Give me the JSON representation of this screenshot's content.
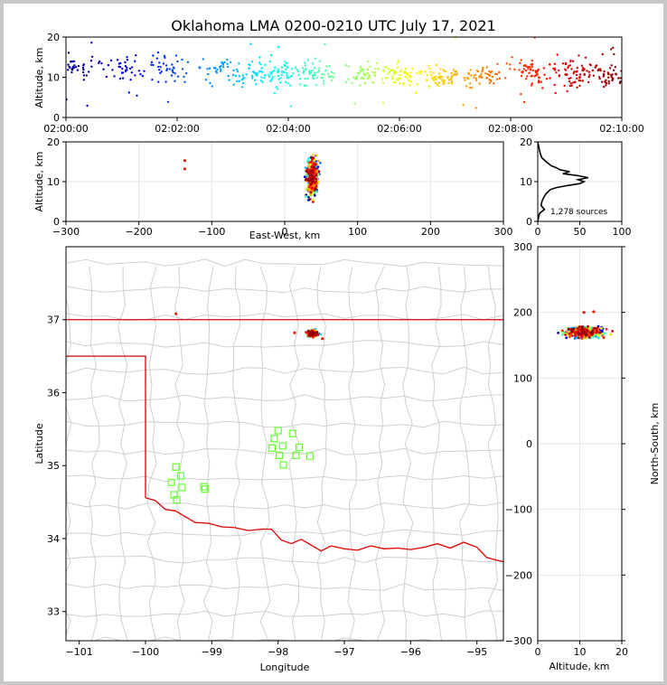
{
  "title": "Oklahoma LMA 0200-0210 UTC July 17, 2021",
  "colors": {
    "boundary": "#cfcfcf",
    "state_line": "#e00000",
    "station": "#66ff33",
    "hist": "#000000",
    "grid": "#e6e6e6"
  },
  "chart_data": [
    {
      "id": "time_height",
      "type": "scatter",
      "ylabel": "Altitude, km",
      "xlim": [
        "02:00:00",
        "02:10:00"
      ],
      "ylim": [
        0,
        20
      ],
      "xticks": [
        "02:00:00",
        "02:02:00",
        "02:04:00",
        "02:06:00",
        "02:08:00",
        "02:10:00"
      ],
      "yticks": [
        "0",
        "10",
        "20"
      ],
      "color_by": "time (jet colormap)",
      "bursts": [
        {
          "time": "02:00:10",
          "n": 44,
          "alt_center": 13,
          "alt_spread": 2.5
        },
        {
          "time": "02:01:05",
          "n": 40,
          "alt_center": 12,
          "alt_spread": 2.5
        },
        {
          "time": "02:01:50",
          "n": 38,
          "alt_center": 12.5,
          "alt_spread": 3
        },
        {
          "time": "02:02:45",
          "n": 32,
          "alt_center": 12,
          "alt_spread": 2.5
        },
        {
          "time": "02:03:25",
          "n": 60,
          "alt_center": 11,
          "alt_spread": 3
        },
        {
          "time": "02:04:00",
          "n": 54,
          "alt_center": 11,
          "alt_spread": 3
        },
        {
          "time": "02:04:35",
          "n": 48,
          "alt_center": 11,
          "alt_spread": 3
        },
        {
          "time": "02:05:25",
          "n": 50,
          "alt_center": 10.5,
          "alt_spread": 2.5
        },
        {
          "time": "02:06:00",
          "n": 56,
          "alt_center": 10.5,
          "alt_spread": 2.5
        },
        {
          "time": "02:06:45",
          "n": 60,
          "alt_center": 10,
          "alt_spread": 2.5
        },
        {
          "time": "02:07:30",
          "n": 52,
          "alt_center": 10.5,
          "alt_spread": 2.5
        },
        {
          "time": "02:08:20",
          "n": 60,
          "alt_center": 11,
          "alt_spread": 3
        },
        {
          "time": "02:09:05",
          "n": 70,
          "alt_center": 11,
          "alt_spread": 3.5
        },
        {
          "time": "02:09:45",
          "n": 62,
          "alt_center": 11,
          "alt_spread": 3
        }
      ]
    },
    {
      "id": "ew_altitude",
      "type": "scatter",
      "xlabel": "East-West, km",
      "ylabel": "Altitude, km",
      "xlim": [
        -300,
        300
      ],
      "ylim": [
        0,
        20
      ],
      "xticks": [
        "−300",
        "−200",
        "−100",
        "0",
        "100",
        "200",
        "300"
      ],
      "yticks": [
        "0",
        "10",
        "20"
      ],
      "cluster": {
        "x_center": 38,
        "x_spread": 6,
        "alt_center": 11,
        "alt_spread": 3.5
      },
      "outliers": [
        {
          "x": -137,
          "y": 15.3
        },
        {
          "x": -137,
          "y": 13.2
        }
      ]
    },
    {
      "id": "altitude_histogram",
      "type": "line",
      "xlim": [
        0,
        100
      ],
      "ylim": [
        0,
        20
      ],
      "xticks": [
        "0",
        "50",
        "100"
      ],
      "yticks": [
        "0",
        "10",
        "20"
      ],
      "annotation": "1,278 sources",
      "profile": [
        {
          "alt": 0,
          "count": 0
        },
        {
          "alt": 2,
          "count": 2
        },
        {
          "alt": 3,
          "count": 8
        },
        {
          "alt": 4,
          "count": 4
        },
        {
          "alt": 5,
          "count": 5
        },
        {
          "alt": 6,
          "count": 7
        },
        {
          "alt": 7,
          "count": 10
        },
        {
          "alt": 8,
          "count": 15
        },
        {
          "alt": 8.5,
          "count": 22
        },
        {
          "alt": 9,
          "count": 35
        },
        {
          "alt": 9.5,
          "count": 50
        },
        {
          "alt": 10,
          "count": 55
        },
        {
          "alt": 10.5,
          "count": 48
        },
        {
          "alt": 11,
          "count": 60
        },
        {
          "alt": 11.5,
          "count": 48
        },
        {
          "alt": 12,
          "count": 30
        },
        {
          "alt": 12.5,
          "count": 38
        },
        {
          "alt": 13,
          "count": 26
        },
        {
          "alt": 13.5,
          "count": 22
        },
        {
          "alt": 14,
          "count": 16
        },
        {
          "alt": 15,
          "count": 10
        },
        {
          "alt": 16,
          "count": 5
        },
        {
          "alt": 17,
          "count": 3
        },
        {
          "alt": 18,
          "count": 2
        },
        {
          "alt": 19,
          "count": 1
        },
        {
          "alt": 20,
          "count": 0
        }
      ]
    },
    {
      "id": "plan_view",
      "type": "scatter",
      "xlabel": "Longitude",
      "ylabel": "Latitude",
      "xlim": [
        -101.2,
        -94.6
      ],
      "ylim": [
        32.6,
        38.0
      ],
      "xticks": [
        "−101",
        "−100",
        "−99",
        "−98",
        "−97",
        "−96",
        "−95"
      ],
      "yticks": [
        "33",
        "34",
        "35",
        "36",
        "37"
      ],
      "cluster": {
        "lon_center": -97.48,
        "lon_spread": 0.07,
        "lat_center": 36.81,
        "lat_spread": 0.035
      },
      "outliers": [
        {
          "lon": -97.75,
          "lat": 36.82
        },
        {
          "lon": -97.33,
          "lat": 36.74
        },
        {
          "lon": -99.54,
          "lat": 37.08
        }
      ],
      "stations": [
        {
          "lon": -99.54,
          "lat": 34.98
        },
        {
          "lon": -99.47,
          "lat": 34.86
        },
        {
          "lon": -99.61,
          "lat": 34.77
        },
        {
          "lon": -99.45,
          "lat": 34.7
        },
        {
          "lon": -99.57,
          "lat": 34.6
        },
        {
          "lon": -99.53,
          "lat": 34.53
        },
        {
          "lon": -99.12,
          "lat": 34.71
        },
        {
          "lon": -99.1,
          "lat": 34.68
        },
        {
          "lon": -98.0,
          "lat": 35.48
        },
        {
          "lon": -98.06,
          "lat": 35.37
        },
        {
          "lon": -98.09,
          "lat": 35.24
        },
        {
          "lon": -97.93,
          "lat": 35.27
        },
        {
          "lon": -97.98,
          "lat": 35.14
        },
        {
          "lon": -97.92,
          "lat": 35.01
        },
        {
          "lon": -97.78,
          "lat": 35.44
        },
        {
          "lon": -97.68,
          "lat": 35.25
        },
        {
          "lon": -97.73,
          "lat": 35.14
        },
        {
          "lon": -97.52,
          "lat": 35.13
        }
      ]
    },
    {
      "id": "altitude_ns",
      "type": "scatter",
      "xlabel": "Altitude, km",
      "ylabel": "North-South, km",
      "xlim": [
        0,
        20
      ],
      "ylim": [
        -300,
        300
      ],
      "xticks": [
        "0",
        "10",
        "20"
      ],
      "yticks": [
        "−300",
        "−200",
        "−100",
        "0",
        "100",
        "200",
        "300"
      ],
      "cluster": {
        "alt_center": 11,
        "alt_spread": 3.5,
        "ns_center": 170,
        "ns_spread": 4
      },
      "outliers": [
        {
          "x": 13.3,
          "y": 201
        },
        {
          "x": 11,
          "y": 200
        }
      ]
    }
  ]
}
